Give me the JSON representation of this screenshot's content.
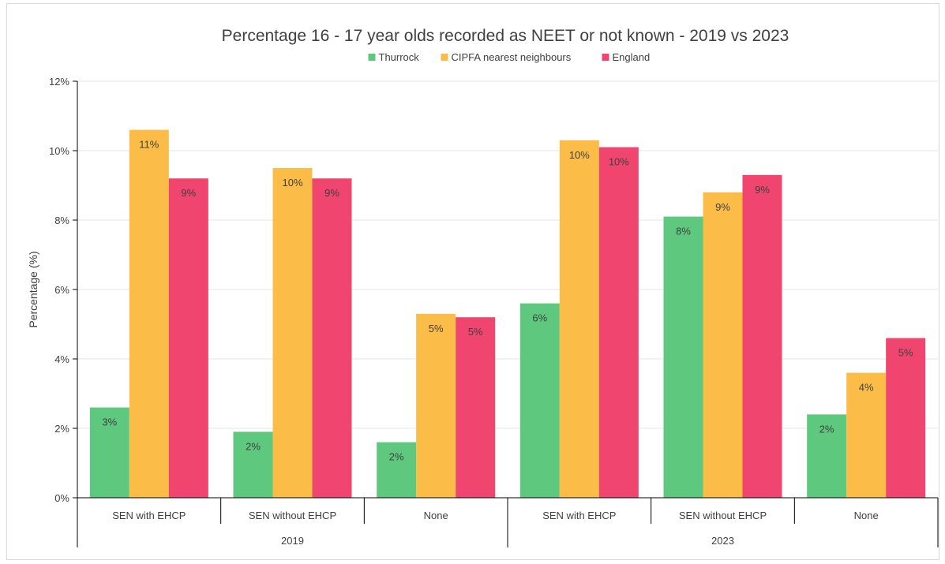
{
  "chart_data": {
    "type": "bar",
    "title": "Percentage 16 - 17 year olds recorded as NEET or not known - 2019 vs 2023",
    "ylabel": "Percentage (%)",
    "ylim": [
      0,
      12
    ],
    "yticks": [
      "0%",
      "2%",
      "4%",
      "6%",
      "8%",
      "10%",
      "12%"
    ],
    "legend": "top",
    "grid": true,
    "groups": [
      {
        "label": "2019",
        "categories": [
          "SEN with EHCP",
          "SEN without EHCP",
          "None"
        ]
      },
      {
        "label": "2023",
        "categories": [
          "SEN with EHCP",
          "SEN without EHCP",
          "None"
        ]
      }
    ],
    "series": [
      {
        "name": "Thurrock",
        "color": "#5ec97e",
        "values": [
          2.6,
          1.9,
          1.6,
          5.6,
          8.1,
          2.4
        ],
        "labels": [
          "3%",
          "2%",
          "2%",
          "6%",
          "8%",
          "2%"
        ]
      },
      {
        "name": "CIPFA nearest neighbours",
        "color": "#fbbd47",
        "values": [
          10.6,
          9.5,
          5.3,
          10.3,
          8.8,
          3.6
        ],
        "labels": [
          "11%",
          "10%",
          "5%",
          "10%",
          "9%",
          "4%"
        ]
      },
      {
        "name": "England",
        "color": "#f0456e",
        "values": [
          9.2,
          9.2,
          5.2,
          10.1,
          9.3,
          4.6
        ],
        "labels": [
          "9%",
          "9%",
          "5%",
          "10%",
          "9%",
          "5%"
        ]
      }
    ]
  }
}
